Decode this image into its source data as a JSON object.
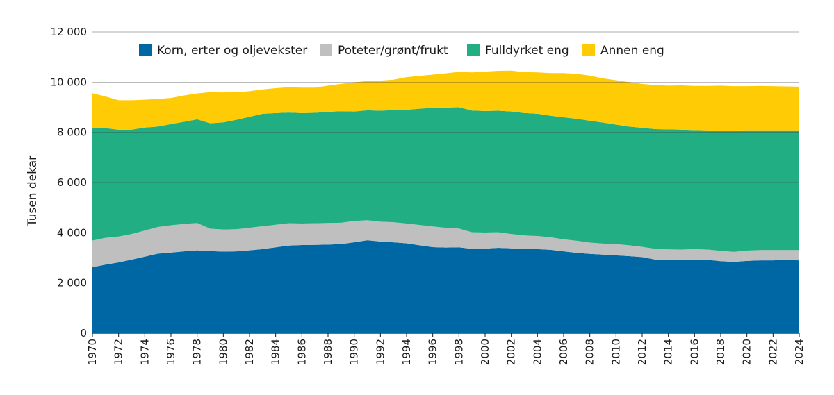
{
  "chart_data": {
    "type": "area",
    "stacked": true,
    "title": "",
    "xlabel": "",
    "ylabel": "Tusen dekar",
    "ylim": [
      0,
      12000
    ],
    "yticks": [
      0,
      2000,
      4000,
      6000,
      8000,
      10000,
      12000
    ],
    "ytick_labels": [
      "0",
      "2 000",
      "4 000",
      "6 000",
      "8 000",
      "10 000",
      "12 000"
    ],
    "xticks": [
      1970,
      1972,
      1974,
      1976,
      1978,
      1980,
      1982,
      1984,
      1986,
      1988,
      1990,
      1992,
      1994,
      1996,
      1998,
      2000,
      2002,
      2004,
      2006,
      2008,
      2010,
      2012,
      2014,
      2016,
      2018,
      2020,
      2022,
      2024
    ],
    "x": [
      1970,
      1971,
      1972,
      1973,
      1974,
      1975,
      1976,
      1977,
      1978,
      1979,
      1980,
      1981,
      1982,
      1983,
      1984,
      1985,
      1986,
      1987,
      1988,
      1989,
      1990,
      1991,
      1992,
      1993,
      1994,
      1995,
      1996,
      1997,
      1998,
      1999,
      2000,
      2001,
      2002,
      2003,
      2004,
      2005,
      2006,
      2007,
      2008,
      2009,
      2010,
      2011,
      2012,
      2013,
      2014,
      2015,
      2016,
      2017,
      2018,
      2019,
      2020,
      2021,
      2022,
      2023,
      2024
    ],
    "grid": "horizontal",
    "legend_position": "top",
    "series": [
      {
        "name": "Korn, erter og oljevekster",
        "color": "#0067a5",
        "cumulative": [
          2630,
          2730,
          2820,
          2930,
          3050,
          3170,
          3210,
          3260,
          3300,
          3270,
          3250,
          3260,
          3300,
          3350,
          3420,
          3490,
          3510,
          3520,
          3530,
          3550,
          3620,
          3700,
          3650,
          3620,
          3580,
          3500,
          3430,
          3410,
          3420,
          3360,
          3370,
          3400,
          3380,
          3360,
          3350,
          3320,
          3260,
          3200,
          3160,
          3130,
          3100,
          3070,
          3030,
          2930,
          2910,
          2910,
          2920,
          2920,
          2870,
          2840,
          2880,
          2900,
          2900,
          2920,
          2900
        ]
      },
      {
        "name": "Poteter/grønt/frukt",
        "color": "#bfbfbf",
        "cumulative": [
          3690,
          3800,
          3850,
          3950,
          4090,
          4230,
          4300,
          4350,
          4390,
          4160,
          4130,
          4140,
          4200,
          4260,
          4320,
          4380,
          4370,
          4380,
          4390,
          4400,
          4470,
          4500,
          4440,
          4420,
          4370,
          4310,
          4250,
          4200,
          4170,
          4020,
          4010,
          4020,
          3950,
          3890,
          3870,
          3820,
          3740,
          3680,
          3610,
          3570,
          3550,
          3500,
          3440,
          3360,
          3340,
          3330,
          3350,
          3330,
          3280,
          3240,
          3290,
          3310,
          3310,
          3310,
          3310
        ]
      },
      {
        "name": "Fulldyrket eng",
        "color": "#22ae83",
        "cumulative": [
          8160,
          8170,
          8100,
          8110,
          8190,
          8230,
          8330,
          8420,
          8520,
          8360,
          8400,
          8500,
          8620,
          8740,
          8770,
          8790,
          8770,
          8780,
          8820,
          8840,
          8830,
          8880,
          8860,
          8890,
          8900,
          8940,
          8980,
          8990,
          9000,
          8870,
          8850,
          8860,
          8830,
          8770,
          8740,
          8660,
          8600,
          8540,
          8460,
          8390,
          8310,
          8230,
          8180,
          8130,
          8120,
          8110,
          8090,
          8080,
          8060,
          8070,
          8080,
          8080,
          8080,
          8080,
          8080
        ]
      },
      {
        "name": "Annen eng",
        "color": "#ffcb05",
        "cumulative": [
          9560,
          9430,
          9280,
          9280,
          9300,
          9330,
          9370,
          9470,
          9550,
          9600,
          9590,
          9600,
          9640,
          9710,
          9760,
          9800,
          9780,
          9780,
          9860,
          9930,
          9990,
          10050,
          10060,
          10100,
          10200,
          10250,
          10300,
          10350,
          10410,
          10390,
          10420,
          10450,
          10460,
          10400,
          10390,
          10360,
          10360,
          10330,
          10260,
          10150,
          10080,
          10000,
          9930,
          9880,
          9860,
          9870,
          9850,
          9850,
          9860,
          9840,
          9840,
          9850,
          9840,
          9830,
          9820
        ]
      }
    ]
  }
}
